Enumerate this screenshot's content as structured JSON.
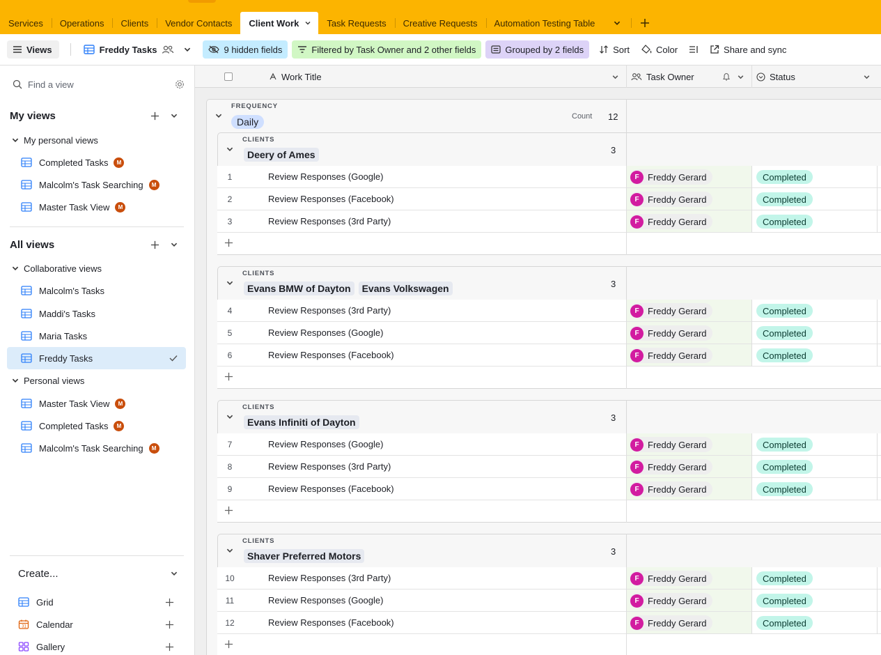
{
  "tabs": {
    "items": [
      "Services",
      "Operations",
      "Clients",
      "Vendor Contacts",
      "Client Work",
      "Task Requests",
      "Creative Requests",
      "Automation Testing Table"
    ],
    "active": "Client Work"
  },
  "toolbar": {
    "views_label": "Views",
    "view_name": "Freddy Tasks",
    "hidden_fields": "9 hidden fields",
    "filter": "Filtered by Task Owner and 2 other fields",
    "grouped": "Grouped by 2 fields",
    "sort": "Sort",
    "color": "Color",
    "share": "Share and sync"
  },
  "sidebar": {
    "search_placeholder": "Find a view",
    "my_views": "My views",
    "my_personal_views": "My personal views",
    "my_personal_items": [
      "Completed Tasks",
      "Malcolm's Task Searching",
      "Master Task View"
    ],
    "all_views": "All views",
    "collaborative_views": "Collaborative views",
    "collaborative_items": [
      "Malcolm's Tasks",
      "Maddi's Tasks",
      "Maria Tasks",
      "Freddy Tasks"
    ],
    "personal_views": "Personal views",
    "personal_items": [
      "Master Task View",
      "Completed Tasks",
      "Malcolm's Task Searching"
    ],
    "avatar_initial": "M",
    "create_label": "Create...",
    "create_items": [
      "Grid",
      "Calendar",
      "Gallery"
    ]
  },
  "grid": {
    "columns": [
      "Work Title",
      "Task Owner",
      "Status"
    ],
    "frequency_caption": "FREQUENCY",
    "frequency_value": "Daily",
    "count_label": "Count",
    "count_value": "12",
    "clients_caption": "CLIENTS",
    "groups": [
      {
        "clients": [
          "Deery of Ames"
        ],
        "count": "3",
        "rows": [
          {
            "n": "1",
            "title": "Review Responses (Google)"
          },
          {
            "n": "2",
            "title": "Review Responses (Facebook)"
          },
          {
            "n": "3",
            "title": "Review Responses (3rd Party)"
          }
        ]
      },
      {
        "clients": [
          "Evans BMW of Dayton",
          "Evans Volkswagen"
        ],
        "count": "3",
        "rows": [
          {
            "n": "4",
            "title": "Review Responses (3rd Party)"
          },
          {
            "n": "5",
            "title": "Review Responses (Google)"
          },
          {
            "n": "6",
            "title": "Review Responses (Facebook)"
          }
        ]
      },
      {
        "clients": [
          "Evans Infiniti of Dayton"
        ],
        "count": "3",
        "rows": [
          {
            "n": "7",
            "title": "Review Responses (Google)"
          },
          {
            "n": "8",
            "title": "Review Responses (3rd Party)"
          },
          {
            "n": "9",
            "title": "Review Responses (Facebook)"
          }
        ]
      },
      {
        "clients": [
          "Shaver Preferred Motors"
        ],
        "count": "3",
        "rows": [
          {
            "n": "10",
            "title": "Review Responses (3rd Party)"
          },
          {
            "n": "11",
            "title": "Review Responses (Google)"
          },
          {
            "n": "12",
            "title": "Review Responses (Facebook)"
          }
        ]
      }
    ],
    "owner_name": "Freddy Gerard",
    "owner_initial": "F",
    "status_value": "Completed"
  },
  "colors": {
    "brand": "#fcb400",
    "owner_avatar": "#d21ca0",
    "status_chip": "#c2f5e9",
    "selected_view": "#dcecfa"
  }
}
